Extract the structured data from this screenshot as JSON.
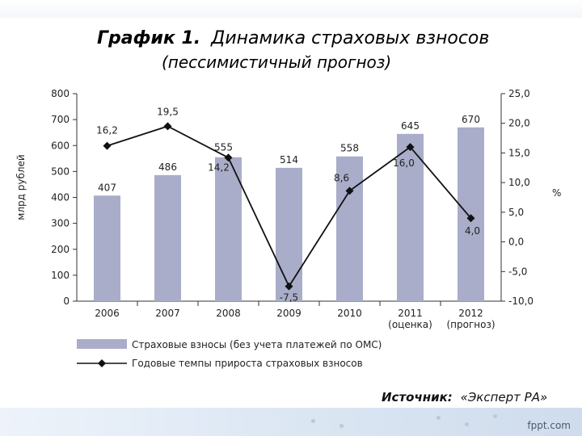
{
  "chart_data": {
    "type": "bar",
    "title_prefix": "График 1.",
    "title_rest": "Динамика страховых взносов",
    "subtitle": "(пессимистичный прогноз)",
    "ylabel_left": "млрд рублей",
    "ylabel_right": "%",
    "categories": [
      "2006",
      "2007",
      "2008",
      "2009",
      "2010",
      "2011",
      "2012"
    ],
    "category_notes": [
      "",
      "",
      "",
      "",
      "",
      "(оценка)",
      "(прогноз)"
    ],
    "ylim_left": [
      0,
      800
    ],
    "yticks_left": [
      "0",
      "100",
      "200",
      "300",
      "400",
      "500",
      "600",
      "700",
      "800"
    ],
    "ylim_right": [
      -10,
      25
    ],
    "yticks_right": [
      "-10,0",
      "-5,0",
      "0,0",
      "5,0",
      "10,0",
      "15,0",
      "20,0",
      "25,0"
    ],
    "series": [
      {
        "name": "Страховые взносы (без учета платежей по ОМС)",
        "kind": "bar",
        "axis": "left",
        "values": [
          407,
          486,
          555,
          514,
          558,
          645,
          670
        ],
        "labels": [
          "407",
          "486",
          "555",
          "514",
          "558",
          "645",
          "670"
        ],
        "color": "#a9adc9"
      },
      {
        "name": "Годовые темпы прироста страховых взносов",
        "kind": "line",
        "axis": "right",
        "values": [
          16.2,
          19.5,
          14.2,
          -7.5,
          8.6,
          16.0,
          4.0
        ],
        "labels": [
          "16,2",
          "19,5",
          "14,2",
          "-7,5",
          "8,6",
          "16,0",
          "4,0"
        ],
        "color": "#111111"
      }
    ],
    "grid": false,
    "legend_position": "bottom"
  },
  "source_label": "Источник:",
  "source_value": "«Эксперт РА»",
  "footer_brand": "fppt.com"
}
